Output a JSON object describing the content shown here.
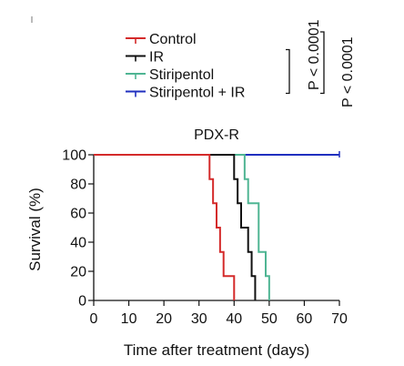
{
  "chart_data": {
    "type": "line",
    "title": "PDX-R",
    "xlabel": "Time after treatment (days)",
    "ylabel": "Survival (%)",
    "xlim": [
      0,
      70
    ],
    "ylim": [
      0,
      100
    ],
    "x_ticks": [
      "0",
      "10",
      "20",
      "30",
      "40",
      "50",
      "60",
      "70"
    ],
    "y_ticks": [
      "0",
      "20",
      "40",
      "60",
      "80",
      "100"
    ],
    "grid": false,
    "legend_position": "top",
    "step_curve": true,
    "series": [
      {
        "name": "Control",
        "color": "#d42a2a",
        "points": [
          [
            0,
            100
          ],
          [
            33,
            100
          ],
          [
            33,
            83.3
          ],
          [
            34,
            83.3
          ],
          [
            34,
            66.7
          ],
          [
            35,
            66.7
          ],
          [
            35,
            50
          ],
          [
            36,
            50
          ],
          [
            36,
            33.3
          ],
          [
            37,
            33.3
          ],
          [
            37,
            16.7
          ],
          [
            40,
            16.7
          ],
          [
            40,
            0
          ]
        ]
      },
      {
        "name": "IR",
        "color": "#111111",
        "points": [
          [
            0,
            100
          ],
          [
            40,
            100
          ],
          [
            40,
            83.3
          ],
          [
            41,
            83.3
          ],
          [
            41,
            66.7
          ],
          [
            42,
            66.7
          ],
          [
            42,
            50
          ],
          [
            44,
            50
          ],
          [
            44,
            33.3
          ],
          [
            45,
            33.3
          ],
          [
            45,
            16.7
          ],
          [
            46,
            16.7
          ],
          [
            46,
            0
          ]
        ]
      },
      {
        "name": "Stiripentol",
        "color": "#4fb593",
        "points": [
          [
            0,
            100
          ],
          [
            43,
            100
          ],
          [
            43,
            83.3
          ],
          [
            44,
            83.3
          ],
          [
            44,
            66.7
          ],
          [
            47,
            66.7
          ],
          [
            47,
            33.3
          ],
          [
            49,
            33.3
          ],
          [
            49,
            16.7
          ],
          [
            50,
            16.7
          ],
          [
            50,
            0
          ]
        ]
      },
      {
        "name": "Stiripentol + IR",
        "color": "#1f2fbf",
        "points": [
          [
            0,
            100
          ],
          [
            70,
            100
          ]
        ]
      }
    ],
    "annotations": [
      {
        "text": "P < 0.0001",
        "brackets": [
          "IR",
          "Stiripentol + IR"
        ]
      },
      {
        "text": "P < 0.0001",
        "brackets": [
          "Control",
          "Stiripentol + IR"
        ]
      }
    ]
  }
}
